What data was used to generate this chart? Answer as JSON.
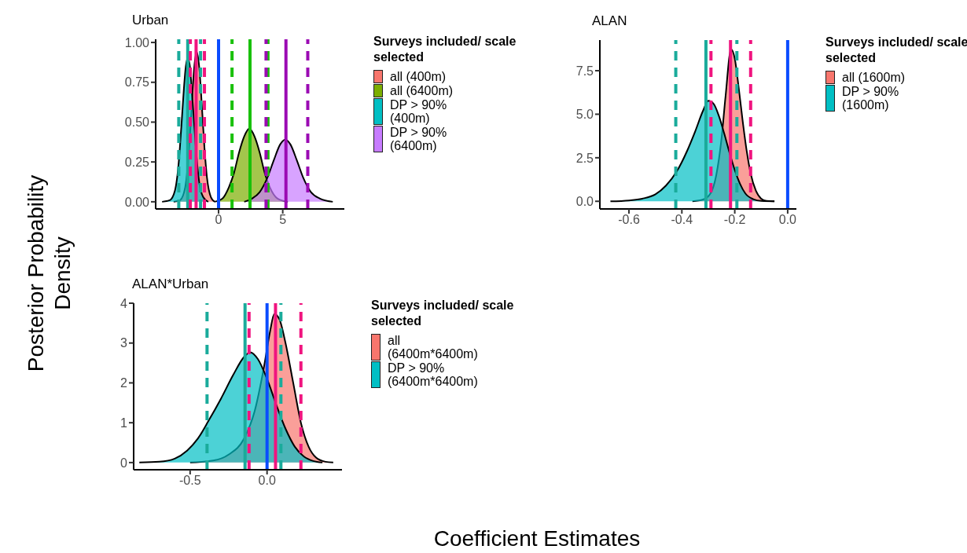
{
  "chart_data": [
    {
      "type": "area",
      "title": "Urban",
      "ylabel": "Posterior Probability Density",
      "legend": "right",
      "legend_title": "Surveys included/ scale selected",
      "xlim": [
        -4.9,
        9.8
      ],
      "xticks": [
        0,
        5
      ],
      "ylim": [
        -0.045,
        1.02
      ],
      "yticks": [
        {
          "value": 0,
          "label": "0.00"
        },
        {
          "value": 0.25,
          "label": "0.25"
        },
        {
          "value": 0.5,
          "label": "0.50"
        },
        {
          "value": 0.75,
          "label": "0.75"
        },
        {
          "value": 1,
          "label": "1.00"
        }
      ],
      "series": [
        {
          "name": "all (400m)",
          "color": "#f8766d",
          "x": [
            -3.5,
            -3.0,
            -2.6,
            -2.3,
            -2.1,
            -1.9,
            -1.7,
            -1.5,
            -1.3,
            -1.1,
            -0.9,
            -0.6,
            -0.3
          ],
          "values": [
            0,
            0.01,
            0.09,
            0.33,
            0.59,
            0.84,
            0.94,
            0.84,
            0.6,
            0.34,
            0.15,
            0.03,
            0
          ]
        },
        {
          "name": "all (6400m)",
          "color": "#7cae00",
          "x": [
            -0.3,
            0.3,
            0.8,
            1.2,
            1.6,
            2.0,
            2.4,
            2.8,
            3.2,
            3.6,
            4.0,
            4.6,
            5.4
          ],
          "values": [
            0,
            0.02,
            0.09,
            0.18,
            0.31,
            0.41,
            0.46,
            0.41,
            0.31,
            0.18,
            0.09,
            0.02,
            0
          ]
        },
        {
          "name": "DP > 90% (400m)",
          "color": "#00bfc4",
          "x": [
            -4.4,
            -3.8,
            -3.4,
            -3.1,
            -2.9,
            -2.7,
            -2.55,
            -2.4,
            -2.25,
            -2.1,
            -1.9,
            -1.7,
            -1.5,
            -1.2,
            -0.8
          ],
          "values": [
            0,
            0.01,
            0.07,
            0.25,
            0.47,
            0.71,
            0.85,
            0.9,
            0.86,
            0.72,
            0.49,
            0.27,
            0.12,
            0.03,
            0
          ]
        },
        {
          "name": "DP > 90% (6400m)",
          "color": "#c77cff",
          "x": [
            2.0,
            2.6,
            3.2,
            3.8,
            4.3,
            4.8,
            5.2,
            5.6,
            6.1,
            6.6,
            7.2,
            7.9,
            8.9
          ],
          "values": [
            0,
            0.02,
            0.06,
            0.15,
            0.26,
            0.36,
            0.39,
            0.36,
            0.26,
            0.15,
            0.06,
            0.02,
            0
          ]
        }
      ],
      "ref_lines": [
        {
          "axis": "x",
          "value": -3.1,
          "color": "#1aab9b",
          "line_style": "dashed"
        },
        {
          "axis": "x",
          "value": -2.4,
          "color": "#1aab9b",
          "line_style": "solid"
        },
        {
          "axis": "x",
          "value": -1.4,
          "color": "#1aab9b",
          "line_style": "dashed"
        },
        {
          "axis": "x",
          "value": -2.2,
          "color": "#f0147f",
          "line_style": "dashed"
        },
        {
          "axis": "x",
          "value": -1.75,
          "color": "#f0147f",
          "line_style": "solid"
        },
        {
          "axis": "x",
          "value": -1.1,
          "color": "#f0147f",
          "line_style": "dashed"
        },
        {
          "axis": "x",
          "value": 0,
          "color": "#0a4cff",
          "line_style": "solid"
        },
        {
          "axis": "x",
          "value": 1.05,
          "color": "#19c00a",
          "line_style": "dashed"
        },
        {
          "axis": "x",
          "value": 2.45,
          "color": "#19c00a",
          "line_style": "solid"
        },
        {
          "axis": "x",
          "value": 3.85,
          "color": "#19c00a",
          "line_style": "dashed"
        },
        {
          "axis": "x",
          "value": 3.7,
          "color": "#9b0ab3",
          "line_style": "dashed"
        },
        {
          "axis": "x",
          "value": 5.25,
          "color": "#9b0ab3",
          "line_style": "solid"
        },
        {
          "axis": "x",
          "value": 6.95,
          "color": "#9b0ab3",
          "line_style": "dashed"
        }
      ]
    },
    {
      "type": "area",
      "title": "ALAN",
      "legend": "right",
      "legend_title": "Surveys included/ scale selected",
      "xlim": [
        -0.71,
        0.033
      ],
      "xticks": [
        -0.6,
        -0.4,
        -0.2,
        {
          "value": 0,
          "label": "0.0"
        }
      ],
      "ylim": [
        -0.44,
        9.26
      ],
      "yticks": [
        {
          "value": 0,
          "label": "0.0"
        },
        2.5,
        {
          "value": 5,
          "label": "5.0"
        },
        7.5
      ],
      "series": [
        {
          "name": "all (1600m)",
          "color": "#f8766d",
          "x": [
            -0.36,
            -0.32,
            -0.29,
            -0.27,
            -0.25,
            -0.235,
            -0.214,
            -0.2,
            -0.185,
            -0.17,
            -0.155,
            -0.14,
            -0.12,
            -0.1,
            -0.08,
            -0.05
          ],
          "values": [
            0,
            0.1,
            0.5,
            1.5,
            3.6,
            6.0,
            8.73,
            8.2,
            6.5,
            4.6,
            2.9,
            1.6,
            0.6,
            0.15,
            0.02,
            0
          ]
        },
        {
          "name": "DP > 90% (1600m)",
          "color": "#00bfc4",
          "x": [
            -0.67,
            -0.6,
            -0.55,
            -0.5,
            -0.46,
            -0.42,
            -0.38,
            -0.35,
            -0.32,
            -0.3,
            -0.28,
            -0.26,
            -0.24,
            -0.22,
            -0.2,
            -0.18,
            -0.16,
            -0.13,
            -0.1,
            -0.05
          ],
          "values": [
            0,
            0.05,
            0.15,
            0.4,
            0.9,
            1.7,
            2.9,
            4.0,
            5.2,
            5.77,
            5.6,
            4.9,
            3.9,
            2.8,
            1.8,
            1.0,
            0.45,
            0.12,
            0.02,
            0
          ]
        }
      ],
      "ref_lines": [
        {
          "axis": "x",
          "value": -0.423,
          "color": "#1aab9b",
          "line_style": "dashed"
        },
        {
          "axis": "x",
          "value": -0.309,
          "color": "#1aab9b",
          "line_style": "solid"
        },
        {
          "axis": "x",
          "value": -0.192,
          "color": "#1aab9b",
          "line_style": "dashed"
        },
        {
          "axis": "x",
          "value": -0.29,
          "color": "#f0147f",
          "line_style": "dashed"
        },
        {
          "axis": "x",
          "value": -0.216,
          "color": "#f0147f",
          "line_style": "solid"
        },
        {
          "axis": "x",
          "value": -0.14,
          "color": "#f0147f",
          "line_style": "dashed"
        },
        {
          "axis": "x",
          "value": 0,
          "color": "#0a4cff",
          "line_style": "solid"
        }
      ]
    },
    {
      "type": "area",
      "title": "ALAN*Urban",
      "xlabel": "Coefficient Estimates",
      "legend": "right",
      "legend_title": "Surveys included/ scale selected",
      "xlim": [
        -0.867,
        0.487
      ],
      "xticks": [
        -0.5,
        {
          "value": 0,
          "label": "0.0"
        }
      ],
      "ylim": [
        -0.18,
        4.0
      ],
      "yticks": [
        0,
        1,
        2,
        3,
        4
      ],
      "series": [
        {
          "name": "all (6400m*6400m)",
          "color": "#f8766d",
          "x": [
            -0.5,
            -0.35,
            -0.25,
            -0.15,
            -0.08,
            -0.02,
            0.02,
            0.047,
            0.08,
            0.12,
            0.17,
            0.22,
            0.27,
            0.32,
            0.38,
            0.43
          ],
          "values": [
            0,
            0.05,
            0.2,
            0.6,
            1.3,
            2.4,
            3.3,
            3.73,
            3.6,
            3.0,
            2.0,
            1.0,
            0.4,
            0.12,
            0.02,
            0
          ]
        },
        {
          "name": "DP > 90% (6400m*6400m)",
          "color": "#00bfc4",
          "x": [
            -0.83,
            -0.7,
            -0.6,
            -0.52,
            -0.45,
            -0.38,
            -0.3,
            -0.22,
            -0.15,
            -0.11,
            -0.06,
            0.0,
            0.06,
            0.12,
            0.18,
            0.24,
            0.3,
            0.36
          ],
          "values": [
            0,
            0.02,
            0.1,
            0.3,
            0.6,
            1.05,
            1.6,
            2.2,
            2.65,
            2.77,
            2.6,
            2.1,
            1.45,
            0.85,
            0.4,
            0.15,
            0.04,
            0
          ]
        }
      ],
      "ref_lines": [
        {
          "axis": "x",
          "value": -0.39,
          "color": "#1aab9b",
          "line_style": "dashed"
        },
        {
          "axis": "x",
          "value": -0.143,
          "color": "#1aab9b",
          "line_style": "solid"
        },
        {
          "axis": "x",
          "value": 0.09,
          "color": "#1aab9b",
          "line_style": "dashed"
        },
        {
          "axis": "x",
          "value": -0.117,
          "color": "#f0147f",
          "line_style": "dashed"
        },
        {
          "axis": "x",
          "value": 0.055,
          "color": "#f0147f",
          "line_style": "solid"
        },
        {
          "axis": "x",
          "value": 0.22,
          "color": "#f0147f",
          "line_style": "dashed"
        },
        {
          "axis": "x",
          "value": 0,
          "color": "#0a4cff",
          "line_style": "solid"
        }
      ]
    }
  ]
}
